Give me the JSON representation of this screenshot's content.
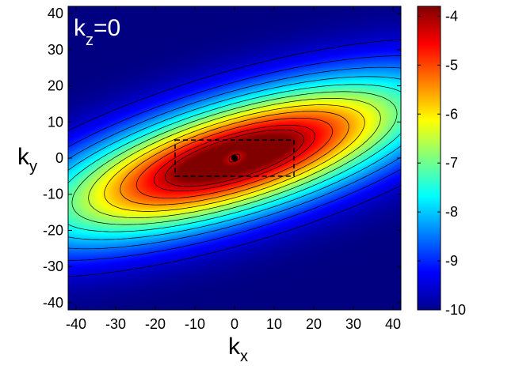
{
  "chart_data": {
    "type": "heatmap",
    "annotation": {
      "main": "k",
      "sub": "z",
      "rest": "=0"
    },
    "xlabel": {
      "main": "k",
      "sub": "x"
    },
    "ylabel": {
      "main": "k",
      "sub": "y"
    },
    "xlim": [
      -42,
      42
    ],
    "ylim": [
      -42,
      42
    ],
    "xticks": [
      -40,
      -30,
      -20,
      -10,
      0,
      10,
      20,
      30,
      40
    ],
    "yticks": [
      -40,
      -30,
      -20,
      -10,
      0,
      10,
      20,
      30,
      40
    ],
    "colorbar": {
      "range": [
        -10,
        -3.8
      ],
      "ticks": [
        -10,
        -9,
        -8,
        -7,
        -6,
        -5,
        -4
      ],
      "colormap": "jet"
    },
    "field": {
      "description_values": "log10 spectral density, max about -3.8 near (±7,±2), min -10 at corners",
      "ridge_slope": 0.3,
      "contour_levels": [
        -9.5,
        -9,
        -8.5,
        -8,
        -7.5,
        -7,
        -6.5,
        -6,
        -5.5,
        -5,
        -4.5,
        -4.2
      ]
    },
    "peaks": [
      {
        "x": 7,
        "y": 1.5,
        "value": -3.8
      },
      {
        "x": -7,
        "y": -1.5,
        "value": -3.8
      }
    ],
    "marked_point": {
      "x": 0,
      "y": 0
    },
    "dashed_box": {
      "x": [
        -15,
        15
      ],
      "y": [
        -5,
        5
      ]
    },
    "colors": {
      "contour": "#000000",
      "annotation": "#ffffff"
    }
  }
}
